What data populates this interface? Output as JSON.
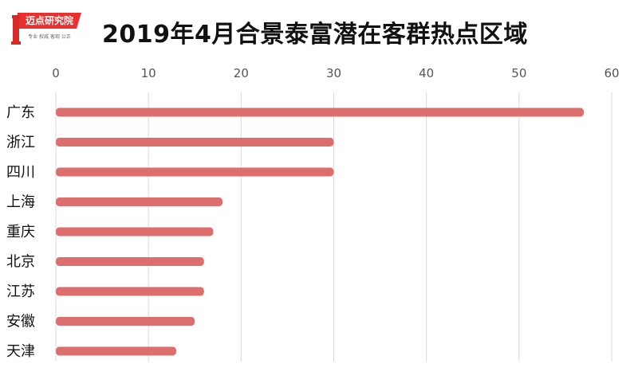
{
  "header": {
    "title": "2019年4月合景泰富潜在客群热点区域",
    "logo_text": "迈点研究院",
    "logo_subtext": "专业 权威 客观 公正"
  },
  "colors": {
    "bar": "#dc6e6e",
    "grid": "#d9d9d9",
    "logo_red": "#e8312f"
  },
  "chart_data": {
    "type": "bar",
    "orientation": "horizontal",
    "title": "2019年4月合景泰富潜在客群热点区域",
    "categories": [
      "广东",
      "浙江",
      "四川",
      "上海",
      "重庆",
      "北京",
      "江苏",
      "安徽",
      "天津"
    ],
    "values": [
      57,
      30,
      30,
      18,
      17,
      16,
      16,
      15,
      13
    ],
    "xlim": [
      0,
      60
    ],
    "xticks": [
      0,
      10,
      20,
      30,
      40,
      50,
      60
    ],
    "grid": true,
    "axis_position": "top"
  }
}
